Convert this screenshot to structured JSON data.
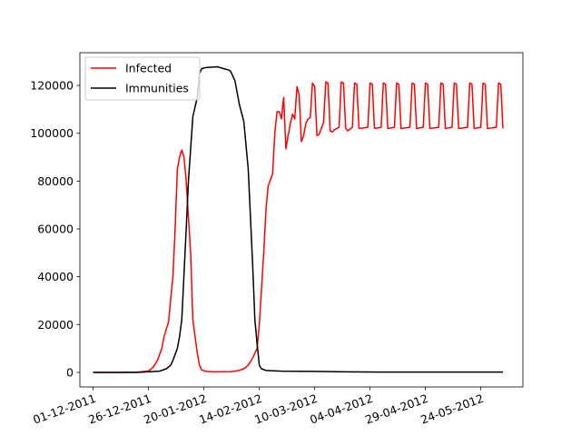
{
  "chart_data": {
    "type": "line",
    "xlim": [
      "2011-11-25",
      "2012-06-12"
    ],
    "xticks": [
      {
        "value": "2011-12-01",
        "label": "01-12-2011"
      },
      {
        "value": "2011-12-26",
        "label": "26-12-2011"
      },
      {
        "value": "2012-01-20",
        "label": "20-01-2012"
      },
      {
        "value": "2012-02-14",
        "label": "14-02-2012"
      },
      {
        "value": "2012-03-10",
        "label": "10-03-2012"
      },
      {
        "value": "2012-04-04",
        "label": "04-04-2012"
      },
      {
        "value": "2012-04-29",
        "label": "29-04-2012"
      },
      {
        "value": "2012-05-24",
        "label": "24-05-2012"
      }
    ],
    "ylim": [
      -6100,
      133700
    ],
    "yticks": [
      0,
      20000,
      40000,
      60000,
      80000,
      100000,
      120000
    ],
    "legend": "upper left",
    "series": [
      {
        "name": "Infected",
        "color": "#ff0000",
        "x": [
          "2011-12-01",
          "2011-12-11",
          "2011-12-21",
          "2011-12-26",
          "2011-12-28",
          "2011-12-30",
          "2012-01-01",
          "2012-01-02",
          "2012-01-04",
          "2012-01-06",
          "2012-01-07",
          "2012-01-08",
          "2012-01-09",
          "2012-01-10",
          "2012-01-11",
          "2012-01-12",
          "2012-01-13",
          "2012-01-14",
          "2012-01-15",
          "2012-01-16",
          "2012-01-17",
          "2012-01-18",
          "2012-01-19",
          "2012-01-21",
          "2012-01-25",
          "2012-02-01",
          "2012-02-05",
          "2012-02-07",
          "2012-02-09",
          "2012-02-11",
          "2012-02-13",
          "2012-02-14",
          "2012-02-15",
          "2012-02-16",
          "2012-02-17",
          "2012-02-18",
          "2012-02-20",
          "2012-02-21",
          "2012-02-22",
          "2012-02-23",
          "2012-02-24",
          "2012-02-25",
          "2012-02-26",
          "2012-02-27",
          "2012-02-28",
          "2012-02-29",
          "2012-03-01",
          "2012-03-02",
          "2012-03-03",
          "2012-03-04",
          "2012-03-05",
          "2012-03-06",
          "2012-03-07",
          "2012-03-08",
          "2012-03-09",
          "2012-03-10",
          "2012-03-11",
          "2012-03-12",
          "2012-03-13",
          "2012-03-14",
          "2012-03-15",
          "2012-03-16",
          "2012-03-17",
          "2012-03-18",
          "2012-03-19",
          "2012-03-21",
          "2012-03-22",
          "2012-03-23",
          "2012-03-24",
          "2012-03-25",
          "2012-03-27",
          "2012-03-28",
          "2012-03-29",
          "2012-03-30",
          "2012-04-03",
          "2012-04-04",
          "2012-04-05",
          "2012-04-06",
          "2012-04-09",
          "2012-04-10",
          "2012-04-11",
          "2012-04-12",
          "2012-04-15",
          "2012-04-16",
          "2012-04-17",
          "2012-04-18",
          "2012-04-22",
          "2012-04-23",
          "2012-04-24",
          "2012-04-25",
          "2012-04-28",
          "2012-04-29",
          "2012-04-30",
          "2012-05-01",
          "2012-05-05",
          "2012-05-06",
          "2012-05-07",
          "2012-05-08",
          "2012-05-11",
          "2012-05-12",
          "2012-05-13",
          "2012-05-14",
          "2012-05-18",
          "2012-05-19",
          "2012-05-20",
          "2012-05-21",
          "2012-05-24",
          "2012-05-25",
          "2012-05-26",
          "2012-05-27",
          "2012-05-31",
          "2012-06-01",
          "2012-06-02",
          "2012-06-03"
        ],
        "values": [
          0,
          0,
          100,
          600,
          2000,
          5000,
          10000,
          15000,
          21000,
          40000,
          60000,
          85000,
          90000,
          93000,
          90000,
          80000,
          65000,
          50000,
          22000,
          15000,
          8000,
          3000,
          1000,
          400,
          200,
          300,
          800,
          1500,
          3000,
          6000,
          10000,
          20000,
          35000,
          50000,
          68000,
          78000,
          83000,
          100000,
          109000,
          109000,
          106000,
          115000,
          93500,
          99000,
          104000,
          108000,
          106000,
          119500,
          116000,
          96500,
          99000,
          104000,
          106000,
          106500,
          121000,
          119500,
          99000,
          99500,
          102000,
          104500,
          121500,
          121000,
          101000,
          100500,
          101500,
          102500,
          121500,
          121000,
          102000,
          101000,
          102500,
          121000,
          120500,
          102000,
          102500,
          121000,
          120500,
          102000,
          102500,
          121000,
          120500,
          102000,
          102500,
          121000,
          120500,
          102000,
          102500,
          121000,
          120500,
          102000,
          102500,
          121000,
          120500,
          102000,
          102500,
          121000,
          120500,
          102000,
          102500,
          121000,
          120500,
          102000,
          102500,
          121000,
          120500,
          102000,
          102500,
          121000,
          120500,
          102000,
          102500,
          121000,
          120500,
          102000
        ]
      },
      {
        "name": "Immunities",
        "color": "#000000",
        "x": [
          "2011-12-01",
          "2011-12-21",
          "2011-12-31",
          "2012-01-03",
          "2012-01-05",
          "2012-01-06",
          "2012-01-08",
          "2012-01-09",
          "2012-01-10",
          "2012-01-12",
          "2012-01-13",
          "2012-01-15",
          "2012-01-17",
          "2012-01-18",
          "2012-01-19",
          "2012-01-21",
          "2012-01-26",
          "2012-01-29",
          "2012-01-31",
          "2012-02-01",
          "2012-02-03",
          "2012-02-05",
          "2012-02-07",
          "2012-02-08",
          "2012-02-09",
          "2012-02-10",
          "2012-02-11",
          "2012-02-12",
          "2012-02-13",
          "2012-02-14",
          "2012-02-15",
          "2012-02-17",
          "2012-02-24",
          "2012-03-10",
          "2012-03-25",
          "2012-04-09",
          "2012-06-03"
        ],
        "values": [
          0,
          0,
          500,
          1500,
          3000,
          5000,
          10000,
          15000,
          22000,
          60000,
          80000,
          107000,
          115000,
          125000,
          127000,
          127500,
          127800,
          127000,
          126500,
          126000,
          122000,
          112000,
          105000,
          95000,
          85000,
          65000,
          45000,
          22000,
          12000,
          3000,
          1500,
          800,
          500,
          400,
          200,
          100,
          100
        ]
      }
    ]
  }
}
